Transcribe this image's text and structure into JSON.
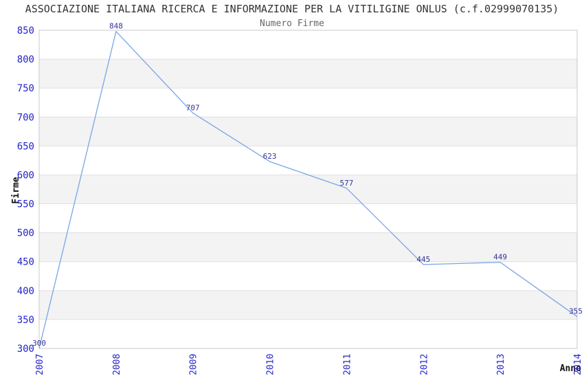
{
  "chart_data": {
    "type": "line",
    "title": "ASSOCIAZIONE ITALIANA RICERCA E INFORMAZIONE PER LA VITILIGINE ONLUS (c.f.02999070135)",
    "subtitle": "Numero Firme",
    "xlabel": "Anno",
    "ylabel": "Firme",
    "categories": [
      "2007",
      "2008",
      "2009",
      "2010",
      "2011",
      "2012",
      "2013",
      "2014"
    ],
    "series": [
      {
        "name": "Numero Firme",
        "values": [
          300,
          848,
          707,
          623,
          577,
          445,
          449,
          355
        ]
      }
    ],
    "ylim": [
      300,
      850
    ],
    "ytick_step": 50,
    "grid": "horizontal-with-alternating-bands",
    "legend": "none",
    "point_labels_visible": true,
    "colors": {
      "line": "#79a6e3",
      "point_label": "#333399",
      "axis_tick": "#2323cc",
      "band": "#f3f3f3",
      "gridline": "#e0e0e0",
      "border": "#c8c8c8",
      "title": "#333333",
      "subtitle": "#666666",
      "axis_title": "#111111"
    }
  }
}
